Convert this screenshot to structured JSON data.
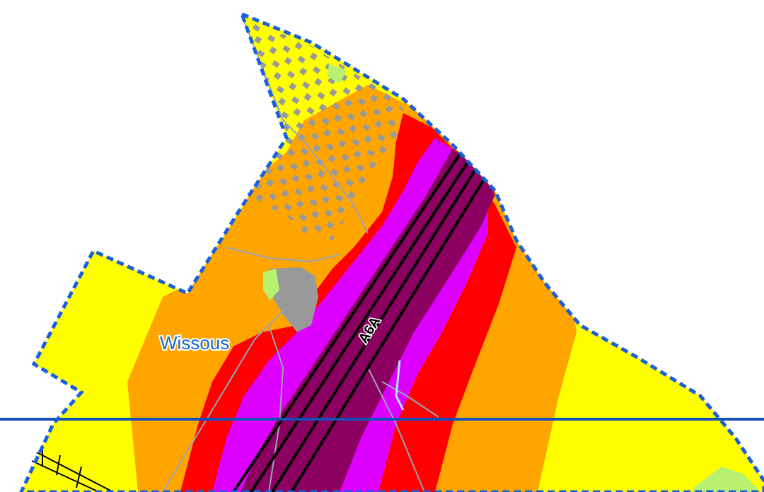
{
  "map": {
    "labels": {
      "commune": "Wissous",
      "road": "A6A"
    },
    "colors": {
      "background": "#ffffff",
      "zone_low": "#ffff00",
      "zone_medium": "#ffa500",
      "zone_high": "#ff0000",
      "zone_very_high": "#dd00ff",
      "zone_extreme": "#8b0060",
      "buildings": "#999999",
      "green_patches": "#b8f070",
      "boundary": "#1a5fdc",
      "reference_line": "#1550b8",
      "label_text": "#1a66cc",
      "roads": "#9aa4b8",
      "highway": "#000000",
      "railway": "#000000"
    },
    "legend_shown": false
  }
}
